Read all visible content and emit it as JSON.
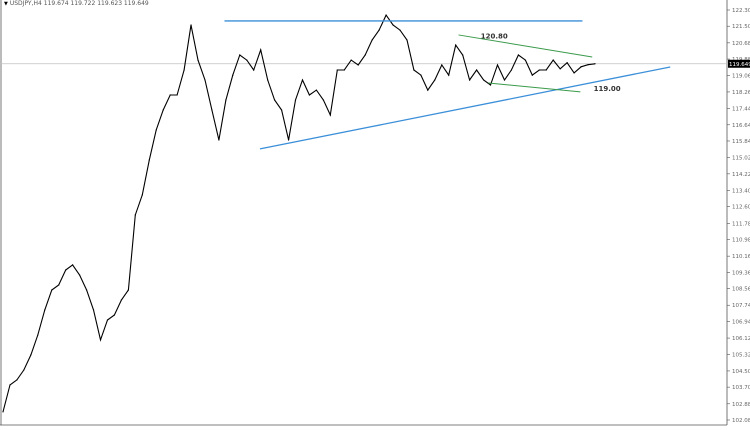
{
  "header": {
    "symbol": "USDJPY,H4",
    "ohlc": "119.674 119.722 119.623 119.649"
  },
  "current_price": "119.649",
  "colors": {
    "price": "#000000",
    "resistance": "#3b8fd9",
    "trendline": "#3b8fd9",
    "channel": "#3a9a4a",
    "price_line": "#c0c0c0"
  },
  "chart_data": {
    "type": "line",
    "title": "",
    "ylim": [
      102.08,
      122.3
    ],
    "yticks": [
      "122.300",
      "121.500",
      "120.680",
      "119.880",
      "119.060",
      "118.260",
      "117.440",
      "116.640",
      "115.840",
      "115.020",
      "114.220",
      "113.400",
      "112.600",
      "111.780",
      "110.980",
      "110.160",
      "109.360",
      "108.560",
      "107.740",
      "106.940",
      "106.120",
      "105.320",
      "104.500",
      "103.700",
      "102.880",
      "102.080"
    ],
    "grid": false,
    "series": [
      {
        "values": [
          102.48,
          103.81,
          104.06,
          104.55,
          105.29,
          106.27,
          107.51,
          108.49,
          108.74,
          109.48,
          109.73,
          109.23,
          108.49,
          107.51,
          106.03,
          107.01,
          107.26,
          108.0,
          108.49,
          112.19,
          113.18,
          114.9,
          116.38,
          117.37,
          118.11,
          118.11,
          119.34,
          121.56,
          119.83,
          118.85,
          117.37,
          115.89,
          117.86,
          119.09,
          120.08,
          119.83,
          119.34,
          120.33,
          118.85,
          117.86,
          117.37,
          115.89,
          117.86,
          118.85,
          118.11,
          118.35,
          117.86,
          117.12,
          119.34,
          119.34,
          119.83,
          119.59,
          120.08,
          120.82,
          121.31,
          122.05,
          121.56,
          121.31,
          120.82,
          119.34,
          119.09,
          118.35,
          118.85,
          119.59,
          119.09,
          120.57,
          120.08,
          118.85,
          119.34,
          118.85,
          118.6,
          119.59,
          118.85,
          119.34,
          120.08,
          119.83,
          119.09,
          119.34,
          119.34,
          119.83,
          119.4,
          119.7,
          119.2,
          119.5,
          119.6,
          119.649
        ]
      }
    ],
    "drawings": [
      {
        "name": "resistance-line",
        "kind": "resistance",
        "x": [
          31.8,
          83.2
        ],
        "y": [
          121.76,
          121.76
        ]
      },
      {
        "name": "rising-trendline",
        "kind": "trendline",
        "x": [
          36.9,
          95.8
        ],
        "y": [
          115.45,
          119.49
        ]
      },
      {
        "name": "channel-upper",
        "kind": "channel",
        "x": [
          65.4,
          84.6
        ],
        "y": [
          121.07,
          119.98
        ]
      },
      {
        "name": "channel-lower",
        "kind": "channel",
        "x": [
          69.7,
          82.9
        ],
        "y": [
          118.7,
          118.26
        ]
      }
    ],
    "annotations": [
      {
        "text": "120.80",
        "x": 68.6,
        "y": 120.9
      },
      {
        "text": "119.00",
        "x": 84.8,
        "y": 118.3
      }
    ]
  }
}
